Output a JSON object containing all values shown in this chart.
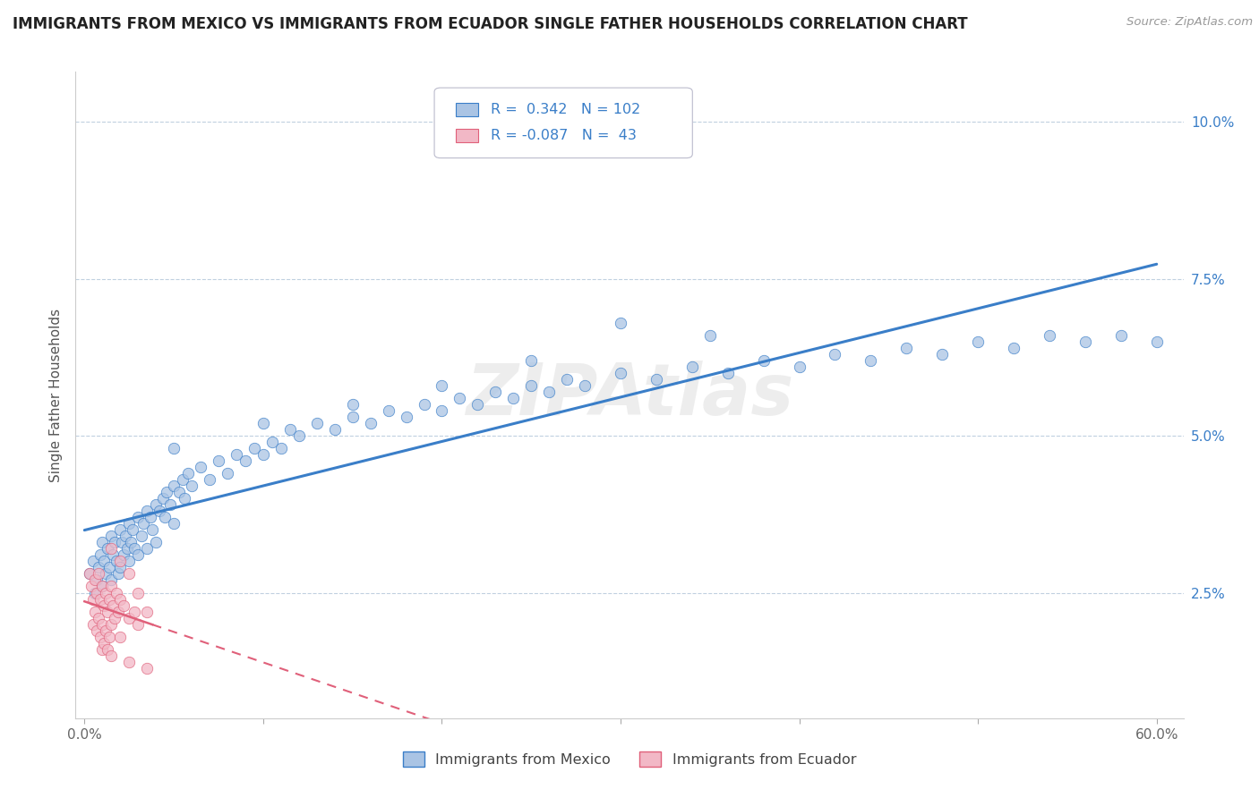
{
  "title": "IMMIGRANTS FROM MEXICO VS IMMIGRANTS FROM ECUADOR SINGLE FATHER HOUSEHOLDS CORRELATION CHART",
  "source": "Source: ZipAtlas.com",
  "ylabel": "Single Father Households",
  "xlim": [
    -0.005,
    0.615
  ],
  "ylim": [
    0.005,
    0.108
  ],
  "yticks": [
    0.025,
    0.05,
    0.075,
    0.1
  ],
  "ytick_labels": [
    "2.5%",
    "5.0%",
    "7.5%",
    "10.0%"
  ],
  "xticks": [
    0.0,
    0.1,
    0.2,
    0.3,
    0.4,
    0.5,
    0.6
  ],
  "xtick_labels": [
    "0.0%",
    "",
    "",
    "",
    "",
    "",
    "60.0%"
  ],
  "mexico_color": "#aac4e4",
  "ecuador_color": "#f2b8c6",
  "mexico_line_color": "#3a7ec8",
  "ecuador_line_color": "#e0607a",
  "mexico_R": 0.342,
  "mexico_N": 102,
  "ecuador_R": -0.087,
  "ecuador_N": 43,
  "background_color": "#ffffff",
  "grid_color": "#c0d0e0",
  "title_fontsize": 12,
  "watermark": "ZIPAtlas",
  "mexico_scatter": [
    [
      0.003,
      0.028
    ],
    [
      0.005,
      0.03
    ],
    [
      0.006,
      0.025
    ],
    [
      0.007,
      0.027
    ],
    [
      0.008,
      0.029
    ],
    [
      0.009,
      0.031
    ],
    [
      0.01,
      0.033
    ],
    [
      0.01,
      0.026
    ],
    [
      0.011,
      0.03
    ],
    [
      0.012,
      0.028
    ],
    [
      0.013,
      0.032
    ],
    [
      0.014,
      0.029
    ],
    [
      0.015,
      0.034
    ],
    [
      0.015,
      0.027
    ],
    [
      0.016,
      0.031
    ],
    [
      0.017,
      0.033
    ],
    [
      0.018,
      0.03
    ],
    [
      0.019,
      0.028
    ],
    [
      0.02,
      0.035
    ],
    [
      0.02,
      0.029
    ],
    [
      0.021,
      0.033
    ],
    [
      0.022,
      0.031
    ],
    [
      0.023,
      0.034
    ],
    [
      0.024,
      0.032
    ],
    [
      0.025,
      0.036
    ],
    [
      0.025,
      0.03
    ],
    [
      0.026,
      0.033
    ],
    [
      0.027,
      0.035
    ],
    [
      0.028,
      0.032
    ],
    [
      0.03,
      0.037
    ],
    [
      0.03,
      0.031
    ],
    [
      0.032,
      0.034
    ],
    [
      0.033,
      0.036
    ],
    [
      0.035,
      0.038
    ],
    [
      0.035,
      0.032
    ],
    [
      0.037,
      0.037
    ],
    [
      0.038,
      0.035
    ],
    [
      0.04,
      0.039
    ],
    [
      0.04,
      0.033
    ],
    [
      0.042,
      0.038
    ],
    [
      0.044,
      0.04
    ],
    [
      0.045,
      0.037
    ],
    [
      0.046,
      0.041
    ],
    [
      0.048,
      0.039
    ],
    [
      0.05,
      0.042
    ],
    [
      0.05,
      0.036
    ],
    [
      0.053,
      0.041
    ],
    [
      0.055,
      0.043
    ],
    [
      0.056,
      0.04
    ],
    [
      0.058,
      0.044
    ],
    [
      0.06,
      0.042
    ],
    [
      0.065,
      0.045
    ],
    [
      0.07,
      0.043
    ],
    [
      0.075,
      0.046
    ],
    [
      0.08,
      0.044
    ],
    [
      0.085,
      0.047
    ],
    [
      0.09,
      0.046
    ],
    [
      0.095,
      0.048
    ],
    [
      0.1,
      0.047
    ],
    [
      0.105,
      0.049
    ],
    [
      0.11,
      0.048
    ],
    [
      0.115,
      0.051
    ],
    [
      0.12,
      0.05
    ],
    [
      0.13,
      0.052
    ],
    [
      0.14,
      0.051
    ],
    [
      0.15,
      0.053
    ],
    [
      0.16,
      0.052
    ],
    [
      0.17,
      0.054
    ],
    [
      0.18,
      0.053
    ],
    [
      0.19,
      0.055
    ],
    [
      0.2,
      0.054
    ],
    [
      0.21,
      0.056
    ],
    [
      0.22,
      0.055
    ],
    [
      0.23,
      0.057
    ],
    [
      0.24,
      0.056
    ],
    [
      0.25,
      0.058
    ],
    [
      0.26,
      0.057
    ],
    [
      0.27,
      0.059
    ],
    [
      0.28,
      0.058
    ],
    [
      0.3,
      0.06
    ],
    [
      0.32,
      0.059
    ],
    [
      0.34,
      0.061
    ],
    [
      0.36,
      0.06
    ],
    [
      0.38,
      0.062
    ],
    [
      0.4,
      0.061
    ],
    [
      0.42,
      0.063
    ],
    [
      0.44,
      0.062
    ],
    [
      0.46,
      0.064
    ],
    [
      0.48,
      0.063
    ],
    [
      0.5,
      0.065
    ],
    [
      0.52,
      0.064
    ],
    [
      0.54,
      0.066
    ],
    [
      0.56,
      0.065
    ],
    [
      0.3,
      0.068
    ],
    [
      0.35,
      0.066
    ],
    [
      0.25,
      0.062
    ],
    [
      0.2,
      0.058
    ],
    [
      0.15,
      0.055
    ],
    [
      0.1,
      0.052
    ],
    [
      0.05,
      0.048
    ],
    [
      0.58,
      0.066
    ],
    [
      0.6,
      0.065
    ]
  ],
  "ecuador_scatter": [
    [
      0.003,
      0.028
    ],
    [
      0.004,
      0.026
    ],
    [
      0.005,
      0.024
    ],
    [
      0.005,
      0.02
    ],
    [
      0.006,
      0.027
    ],
    [
      0.006,
      0.022
    ],
    [
      0.007,
      0.025
    ],
    [
      0.007,
      0.019
    ],
    [
      0.008,
      0.028
    ],
    [
      0.008,
      0.021
    ],
    [
      0.009,
      0.024
    ],
    [
      0.009,
      0.018
    ],
    [
      0.01,
      0.026
    ],
    [
      0.01,
      0.02
    ],
    [
      0.01,
      0.016
    ],
    [
      0.011,
      0.023
    ],
    [
      0.011,
      0.017
    ],
    [
      0.012,
      0.025
    ],
    [
      0.012,
      0.019
    ],
    [
      0.013,
      0.022
    ],
    [
      0.013,
      0.016
    ],
    [
      0.014,
      0.024
    ],
    [
      0.014,
      0.018
    ],
    [
      0.015,
      0.026
    ],
    [
      0.015,
      0.02
    ],
    [
      0.016,
      0.023
    ],
    [
      0.017,
      0.021
    ],
    [
      0.018,
      0.025
    ],
    [
      0.019,
      0.022
    ],
    [
      0.02,
      0.024
    ],
    [
      0.02,
      0.018
    ],
    [
      0.022,
      0.023
    ],
    [
      0.025,
      0.021
    ],
    [
      0.028,
      0.022
    ],
    [
      0.03,
      0.02
    ],
    [
      0.015,
      0.032
    ],
    [
      0.02,
      0.03
    ],
    [
      0.025,
      0.028
    ],
    [
      0.03,
      0.025
    ],
    [
      0.035,
      0.022
    ],
    [
      0.015,
      0.015
    ],
    [
      0.025,
      0.014
    ],
    [
      0.035,
      0.013
    ]
  ]
}
